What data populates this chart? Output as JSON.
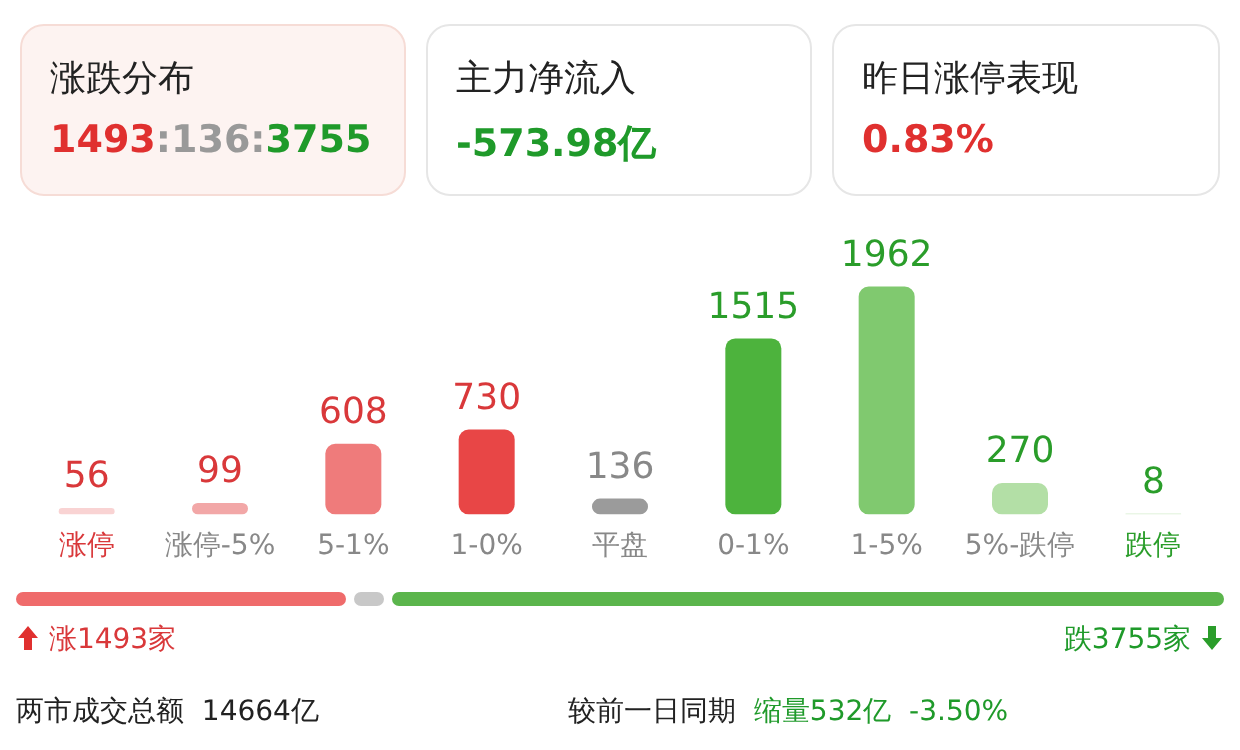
{
  "chart_data": {
    "type": "bar",
    "categories": [
      "涨停",
      "涨停-5%",
      "5-1%",
      "1-0%",
      "平盘",
      "0-1%",
      "1-5%",
      "5%-跌停",
      "跌停"
    ],
    "values": [
      56,
      99,
      608,
      730,
      136,
      1515,
      1962,
      270,
      8
    ],
    "colors": [
      "#f9d3d3",
      "#f2a7a7",
      "#ef7b7b",
      "#e84646",
      "#9b9b9b",
      "#4db33d",
      "#80c96f",
      "#b3dfa6",
      "#d5eecd"
    ],
    "data_labels": true,
    "grid": false,
    "legend": false,
    "annotations": [
      "涨跌分布",
      "1493:136:3755",
      "主力净流入",
      "-573.98亿",
      "昨日涨停表现",
      "0.83%",
      "涨1493家",
      "跌3755家",
      "两市成交总额",
      "14664亿",
      "较前一日同期",
      "缩量532亿",
      "-3.50%"
    ]
  }
}
